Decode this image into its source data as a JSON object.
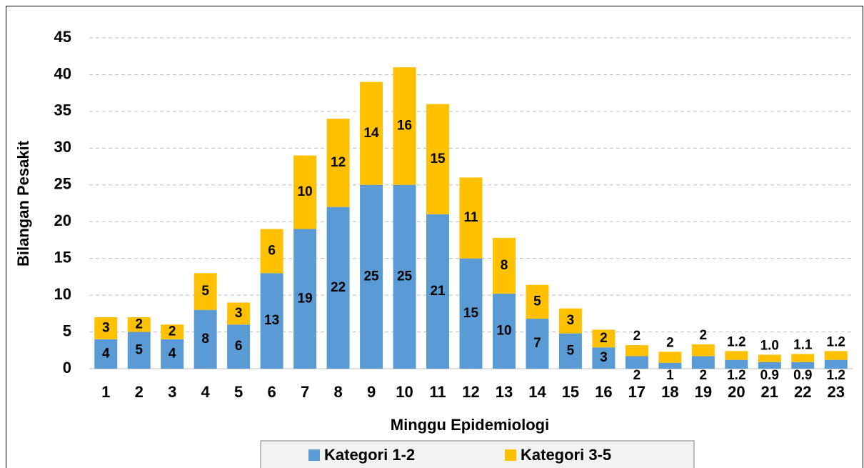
{
  "chart_data": {
    "type": "stacked_bar",
    "xlabel": "Minggu Epidemiologi",
    "ylabel": "Bilangan Pesakit",
    "categories": [
      "1",
      "2",
      "3",
      "4",
      "5",
      "6",
      "7",
      "8",
      "9",
      "10",
      "11",
      "12",
      "13",
      "14",
      "15",
      "16",
      "17",
      "18",
      "19",
      "20",
      "21",
      "22",
      "23"
    ],
    "series": [
      {
        "name": "Kategori 1-2",
        "color": "#5b9bd5",
        "values": [
          4,
          5,
          4,
          8,
          6,
          13,
          19,
          22,
          25,
          25,
          21,
          15,
          10.2,
          6.8,
          4.8,
          2.9,
          1.7,
          0.8,
          1.7,
          1.2,
          0.9,
          0.9,
          1.2
        ],
        "value_labels": [
          "4",
          "5",
          "4",
          "8",
          "6",
          "13",
          "19",
          "22",
          "25",
          "25",
          "21",
          "15",
          "10",
          "7",
          "5",
          "3",
          "2",
          "1",
          "2",
          "1.2",
          "0.9",
          "0.9",
          "1.2"
        ]
      },
      {
        "name": "Kategori 3-5",
        "color": "#ffc000",
        "values": [
          3,
          2,
          2,
          5,
          3,
          6,
          10,
          12,
          14,
          16,
          15,
          11,
          7.6,
          4.6,
          3.4,
          2.4,
          1.5,
          1.5,
          1.6,
          1.2,
          1.0,
          1.1,
          1.2
        ],
        "value_labels": [
          "3",
          "2",
          "2",
          "5",
          "3",
          "6",
          "10",
          "12",
          "14",
          "16",
          "15",
          "11",
          "8",
          "5",
          "3",
          "2",
          "2",
          "2",
          "2",
          "1.2",
          "1.0",
          "1.1",
          "1.2"
        ]
      }
    ],
    "ylim": [
      0,
      45
    ],
    "yticks": [
      0,
      5,
      10,
      15,
      20,
      25,
      30,
      35,
      40,
      45
    ],
    "grid": true,
    "legend": "bottom"
  }
}
